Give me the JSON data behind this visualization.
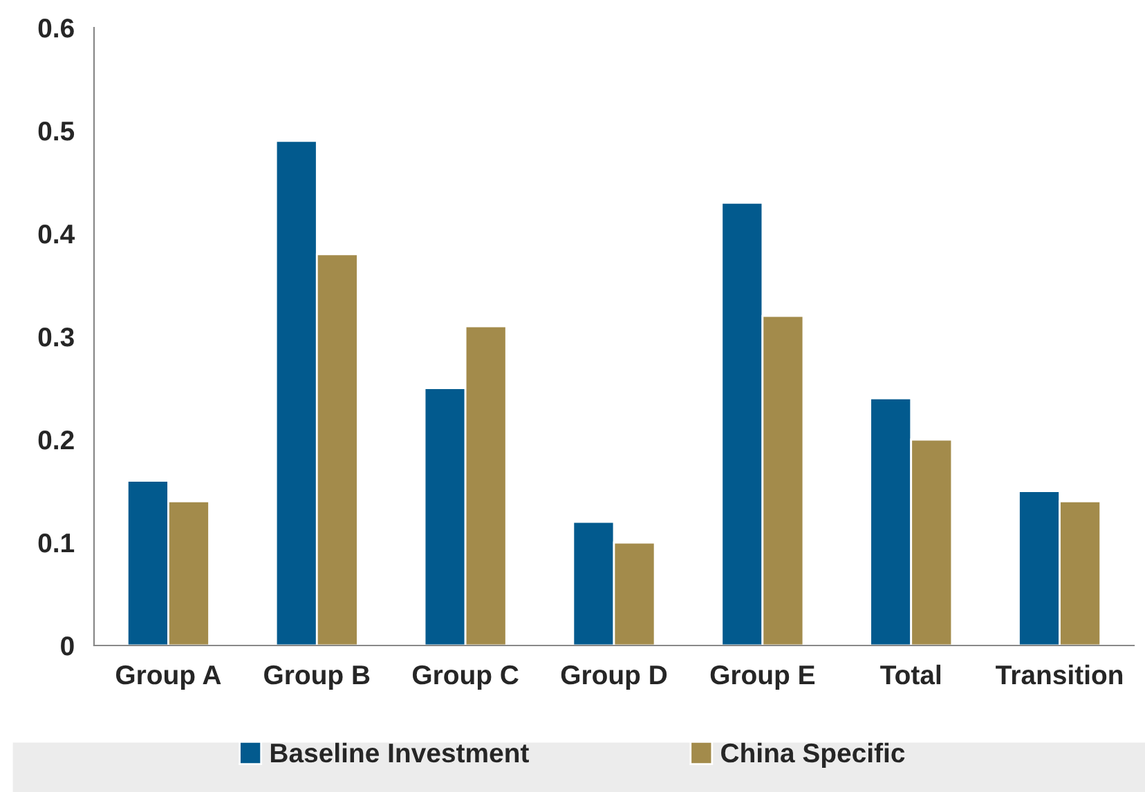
{
  "chart_data": {
    "type": "bar",
    "categories": [
      "Group A",
      "Group B",
      "Group C",
      "Group D",
      "Group E",
      "Total",
      "Transition"
    ],
    "series": [
      {
        "name": "Baseline Investment",
        "color": "#025a8e",
        "values": [
          0.16,
          0.49,
          0.25,
          0.12,
          0.43,
          0.24,
          0.15
        ]
      },
      {
        "name": "China Specific",
        "color": "#a38b4b",
        "values": [
          0.14,
          0.38,
          0.31,
          0.1,
          0.32,
          0.2,
          0.14
        ]
      }
    ],
    "ylim": [
      0,
      0.6
    ],
    "yticks": [
      0,
      0.1,
      0.2,
      0.3,
      0.4,
      0.5,
      0.6
    ],
    "grid": false,
    "legend": "bottom"
  }
}
